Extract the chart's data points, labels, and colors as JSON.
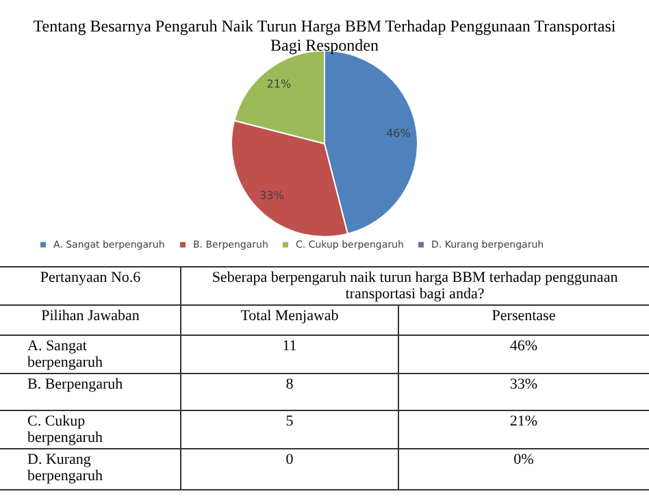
{
  "chart_data": {
    "type": "pie",
    "title": "Tentang Besarnya Pengaruh Naik Turun Harga BBM Terhadap Penggunaan Transportasi Bagi Responden",
    "categories": [
      "A. Sangat berpengaruh",
      "B. Berpengaruh",
      "C. Cukup berpengaruh",
      "D. Kurang berpengaruh"
    ],
    "values": [
      46,
      33,
      21,
      0
    ],
    "colors": [
      "#4f81bd",
      "#c0504d",
      "#9bbb59",
      "#8064a2"
    ],
    "value_labels": [
      "46%",
      "33%",
      "21%",
      null
    ],
    "legend": "bottom",
    "annotations": [
      "Pertanyaan No.6",
      "Seberapa berpengaruh naik turun harga BBM terhadap penggunaan transportasi bagi anda?",
      "Pilihan Jawaban",
      "Total Menjawab",
      "Persentase",
      "A. Sangat berpengaruh",
      "11",
      "46%",
      "B. Berpengaruh",
      "8",
      "33%",
      "C. Cukup berpengaruh",
      "5",
      "21%",
      "D. Kurang berpengaruh",
      "0",
      "0%"
    ]
  }
}
